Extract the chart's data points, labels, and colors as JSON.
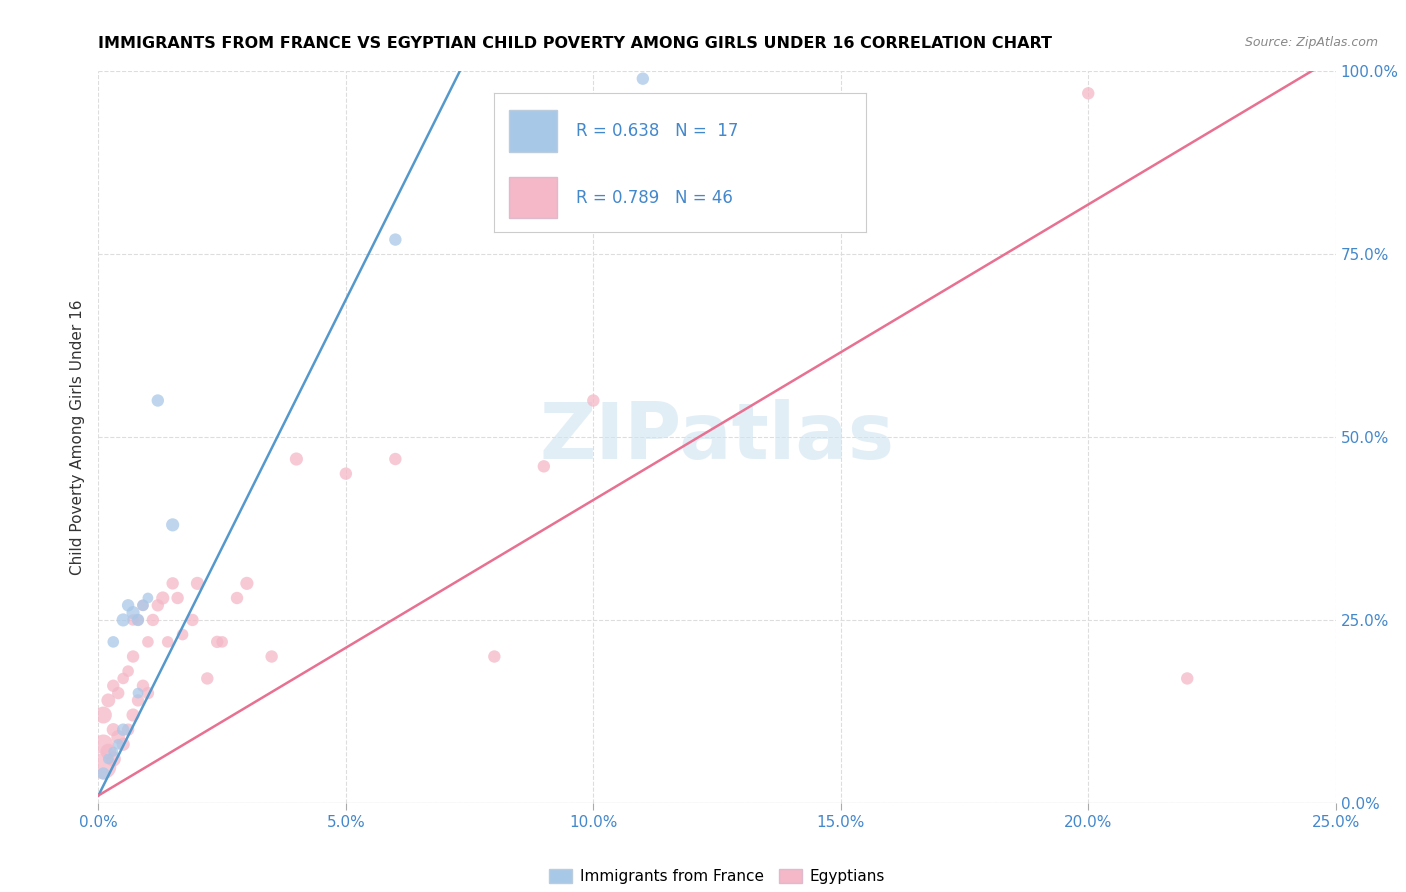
{
  "title": "IMMIGRANTS FROM FRANCE VS EGYPTIAN CHILD POVERTY AMONG GIRLS UNDER 16 CORRELATION CHART",
  "source": "Source: ZipAtlas.com",
  "ylabel_left": "Child Poverty Among Girls Under 16",
  "watermark": "ZIPatlas",
  "legend_r1": "R = 0.638",
  "legend_n1": "N = 17",
  "legend_r2": "R = 0.789",
  "legend_n2": "N = 46",
  "xlim": [
    0,
    0.25
  ],
  "ylim": [
    0,
    1.0
  ],
  "xticks": [
    0.0,
    0.05,
    0.1,
    0.15,
    0.2,
    0.25
  ],
  "yticks_right": [
    0.0,
    0.25,
    0.5,
    0.75,
    1.0
  ],
  "color_blue": "#a8c8e8",
  "color_pink": "#f4b8c8",
  "color_blue_line": "#5599cc",
  "color_pink_line": "#e87090",
  "blue_scatter_x": [
    0.001,
    0.002,
    0.003,
    0.003,
    0.004,
    0.005,
    0.005,
    0.006,
    0.007,
    0.008,
    0.008,
    0.009,
    0.01,
    0.012,
    0.015,
    0.06,
    0.11
  ],
  "blue_scatter_y": [
    0.04,
    0.06,
    0.07,
    0.22,
    0.08,
    0.1,
    0.25,
    0.27,
    0.26,
    0.15,
    0.25,
    0.27,
    0.28,
    0.55,
    0.38,
    0.77,
    0.99
  ],
  "blue_scatter_sizes": [
    80,
    60,
    50,
    70,
    60,
    80,
    90,
    80,
    90,
    60,
    80,
    70,
    60,
    80,
    90,
    80,
    80
  ],
  "pink_scatter_x": [
    0.001,
    0.001,
    0.001,
    0.002,
    0.002,
    0.003,
    0.003,
    0.003,
    0.004,
    0.004,
    0.005,
    0.005,
    0.006,
    0.006,
    0.007,
    0.007,
    0.007,
    0.008,
    0.008,
    0.009,
    0.009,
    0.01,
    0.01,
    0.011,
    0.012,
    0.013,
    0.014,
    0.015,
    0.016,
    0.017,
    0.019,
    0.02,
    0.022,
    0.024,
    0.025,
    0.028,
    0.03,
    0.035,
    0.04,
    0.05,
    0.06,
    0.08,
    0.09,
    0.1,
    0.2,
    0.22
  ],
  "pink_scatter_y": [
    0.05,
    0.08,
    0.12,
    0.07,
    0.14,
    0.06,
    0.1,
    0.16,
    0.09,
    0.15,
    0.08,
    0.17,
    0.1,
    0.18,
    0.12,
    0.2,
    0.25,
    0.14,
    0.25,
    0.16,
    0.27,
    0.15,
    0.22,
    0.25,
    0.27,
    0.28,
    0.22,
    0.3,
    0.28,
    0.23,
    0.25,
    0.3,
    0.17,
    0.22,
    0.22,
    0.28,
    0.3,
    0.2,
    0.47,
    0.45,
    0.47,
    0.2,
    0.46,
    0.55,
    0.97,
    0.17
  ],
  "pink_scatter_sizes": [
    350,
    200,
    150,
    130,
    100,
    120,
    90,
    80,
    100,
    80,
    90,
    70,
    80,
    70,
    90,
    80,
    70,
    80,
    70,
    80,
    70,
    80,
    70,
    80,
    80,
    90,
    70,
    80,
    80,
    70,
    80,
    90,
    80,
    80,
    70,
    80,
    90,
    80,
    90,
    80,
    80,
    80,
    80,
    80,
    80,
    80
  ],
  "blue_line_x": [
    0.0,
    0.073
  ],
  "blue_line_y": [
    0.01,
    1.0
  ],
  "pink_line_x": [
    0.0,
    0.25
  ],
  "pink_line_y": [
    0.01,
    1.02
  ]
}
